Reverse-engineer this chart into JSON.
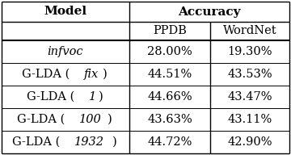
{
  "col_headers_row2": [
    "PPDB",
    "WordNet"
  ],
  "span_header": "Accuracy",
  "model_header": "Model",
  "rows": [
    [
      "infvoc",
      "28.00%",
      "19.30%"
    ],
    [
      "G-LDA (fix)",
      "44.51%",
      "43.53%"
    ],
    [
      "G-LDA (1)",
      "44.66%",
      "43.47%"
    ],
    [
      "G-LDA (100)",
      "43.63%",
      "43.11%"
    ],
    [
      "G-LDA (1932)",
      "44.72%",
      "42.90%"
    ]
  ],
  "italic_parts": [
    "infvoc",
    "fix",
    "1",
    "100",
    "1932"
  ],
  "bg_color": "#ffffff",
  "text_color": "#000000",
  "border_color": "#000000",
  "header_fontsize": 11,
  "body_fontsize": 10.5,
  "fig_width": 3.6,
  "fig_height": 1.92,
  "dpi": 100
}
